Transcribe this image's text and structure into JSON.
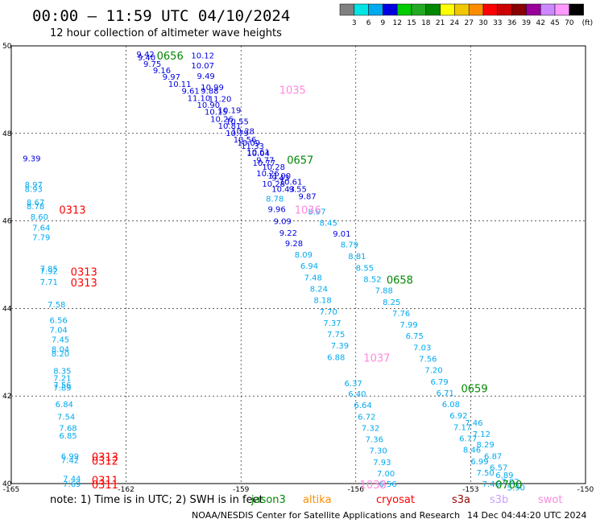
{
  "title": "00:00 – 11:59 UTC 04/10/2024",
  "subtitle": "12 hour collection of altimeter wave heights",
  "note_text": "note:  1) Time is in UTC;  2) SWH is in feet",
  "credit": "NOAA/NESDIS Center for Satellite Applications and Research",
  "generated": "14 Dec 04:44:20 UTC 2024",
  "colorbar": {
    "unit": "(ft)",
    "ticks": [
      "3",
      "6",
      "9",
      "12",
      "15",
      "18",
      "21",
      "24",
      "27",
      "30",
      "33",
      "36",
      "39",
      "42",
      "45",
      "70"
    ],
    "colors": [
      "#808080",
      "#00e6e6",
      "#00aaf0",
      "#0000e0",
      "#00cc00",
      "#22aa22",
      "#008800",
      "#ffff00",
      "#f0c800",
      "#ff8c00",
      "#ff0000",
      "#cc0000",
      "#880000",
      "#990099",
      "#cc88ff",
      "#ff99ff",
      "#000000"
    ]
  },
  "satellites": [
    {
      "name": "jason3",
      "color": "#008800"
    },
    {
      "name": "altika",
      "color": "#ff8c00"
    },
    {
      "name": "cryosat",
      "color": "#ff0000"
    },
    {
      "name": "s3a",
      "color": "#990000"
    },
    {
      "name": "s3b",
      "color": "#c8a0ff"
    },
    {
      "name": "swot",
      "color": "#ff88dd"
    }
  ],
  "chart_data": {
    "type": "scatter",
    "xlim": [
      -165,
      -150
    ],
    "ylim": [
      40,
      50
    ],
    "xticks": [
      "-165",
      "-162",
      "-159",
      "-156",
      "-153",
      "-150"
    ],
    "yticks": [
      "50",
      "48",
      "46",
      "44",
      "42",
      "40"
    ],
    "grid": true,
    "points": [
      {
        "lon": -161.73,
        "lat": 49.8,
        "v": "9.42",
        "c": "#0000e0"
      },
      {
        "lon": -161.7,
        "lat": 49.72,
        "v": "9.40",
        "c": "#0000e0"
      },
      {
        "lon": -161.55,
        "lat": 49.58,
        "v": "9.75",
        "c": "#0000e0"
      },
      {
        "lon": -161.3,
        "lat": 49.43,
        "v": "9.16",
        "c": "#0000e0"
      },
      {
        "lon": -161.05,
        "lat": 49.28,
        "v": "9.97",
        "c": "#0000e0"
      },
      {
        "lon": -160.9,
        "lat": 49.12,
        "v": "10.11",
        "c": "#0000e0"
      },
      {
        "lon": -160.55,
        "lat": 48.96,
        "v": "9.61",
        "c": "#0000e0"
      },
      {
        "lon": -160.4,
        "lat": 48.8,
        "v": "11.10",
        "c": "#0000e0"
      },
      {
        "lon": -160.15,
        "lat": 48.64,
        "v": "10.90",
        "c": "#0000e0"
      },
      {
        "lon": -159.95,
        "lat": 48.48,
        "v": "10.15",
        "c": "#0000e0"
      },
      {
        "lon": -159.8,
        "lat": 48.32,
        "v": "10.26",
        "c": "#0000e0"
      },
      {
        "lon": -159.6,
        "lat": 48.16,
        "v": "10.81",
        "c": "#0000e0"
      },
      {
        "lon": -159.4,
        "lat": 48.0,
        "v": "10.79",
        "c": "#0000e0"
      },
      {
        "lon": -159.2,
        "lat": 47.85,
        "v": "10.56",
        "c": "#0000e0"
      },
      {
        "lon": -159.0,
        "lat": 47.7,
        "v": "11.33",
        "c": "#0000e0"
      },
      {
        "lon": -158.85,
        "lat": 47.54,
        "v": "10.04",
        "c": "#0000e0"
      },
      {
        "lon": -158.6,
        "lat": 47.38,
        "v": "9.77",
        "c": "#0000e0"
      },
      {
        "lon": -158.45,
        "lat": 47.22,
        "v": "10.28",
        "c": "#0000e0"
      },
      {
        "lon": -158.3,
        "lat": 47.02,
        "v": "11.00",
        "c": "#0000e0"
      },
      {
        "lon": -158.0,
        "lat": 46.88,
        "v": "10.61",
        "c": "#0000e0"
      },
      {
        "lon": -158.2,
        "lat": 46.72,
        "v": "10.43",
        "c": "#0000e0"
      },
      {
        "lon": -157.75,
        "lat": 46.72,
        "v": "9.55",
        "c": "#0000e0"
      },
      {
        "lon": -157.5,
        "lat": 46.55,
        "v": "9.87",
        "c": "#0000e0"
      },
      {
        "lon": -158.35,
        "lat": 46.5,
        "v": "8.78",
        "c": "#00aaf0"
      },
      {
        "lon": -158.3,
        "lat": 46.26,
        "v": "9.96",
        "c": "#0000e0"
      },
      {
        "lon": -158.15,
        "lat": 45.98,
        "v": "9.09",
        "c": "#0000e0"
      },
      {
        "lon": -158.0,
        "lat": 45.72,
        "v": "9.22",
        "c": "#0000e0"
      },
      {
        "lon": -157.85,
        "lat": 45.48,
        "v": "9.28",
        "c": "#0000e0"
      },
      {
        "lon": -157.6,
        "lat": 45.22,
        "v": "8.09",
        "c": "#00aaf0"
      },
      {
        "lon": -157.45,
        "lat": 44.96,
        "v": "6.94",
        "c": "#00aaf0"
      },
      {
        "lon": -157.35,
        "lat": 44.7,
        "v": "7.48",
        "c": "#00aaf0"
      },
      {
        "lon": -157.2,
        "lat": 44.44,
        "v": "8.24",
        "c": "#00aaf0"
      },
      {
        "lon": -157.1,
        "lat": 44.18,
        "v": "8.18",
        "c": "#00aaf0"
      },
      {
        "lon": -156.95,
        "lat": 43.92,
        "v": "7.70",
        "c": "#00aaf0"
      },
      {
        "lon": -156.85,
        "lat": 43.66,
        "v": "7.37",
        "c": "#00aaf0"
      },
      {
        "lon": -156.75,
        "lat": 43.4,
        "v": "7.75",
        "c": "#00aaf0"
      },
      {
        "lon": -156.65,
        "lat": 43.14,
        "v": "7.39",
        "c": "#00aaf0"
      },
      {
        "lon": -156.75,
        "lat": 42.88,
        "v": "6.88",
        "c": "#00aaf0"
      },
      {
        "lon": -156.3,
        "lat": 42.28,
        "v": "6.37",
        "c": "#00aaf0"
      },
      {
        "lon": -156.2,
        "lat": 42.04,
        "v": "6.40",
        "c": "#00aaf0"
      },
      {
        "lon": -156.05,
        "lat": 41.78,
        "v": "6.64",
        "c": "#00aaf0"
      },
      {
        "lon": -155.95,
        "lat": 41.52,
        "v": "6.72",
        "c": "#00aaf0"
      },
      {
        "lon": -155.85,
        "lat": 41.26,
        "v": "7.32",
        "c": "#00aaf0"
      },
      {
        "lon": -155.75,
        "lat": 41.0,
        "v": "7.36",
        "c": "#00aaf0"
      },
      {
        "lon": -155.65,
        "lat": 40.74,
        "v": "7.30",
        "c": "#00aaf0"
      },
      {
        "lon": -155.55,
        "lat": 40.48,
        "v": "7.93",
        "c": "#00aaf0"
      },
      {
        "lon": -155.45,
        "lat": 40.22,
        "v": "7.00",
        "c": "#00aaf0"
      },
      {
        "lon": -155.4,
        "lat": 39.98,
        "v": "6.56",
        "c": "#00aaf0"
      },
      {
        "lon": -157.25,
        "lat": 46.2,
        "v": "8.97",
        "c": "#00aaf0"
      },
      {
        "lon": -156.95,
        "lat": 45.95,
        "v": "8.45",
        "c": "#00aaf0"
      },
      {
        "lon": -156.6,
        "lat": 45.7,
        "v": "9.01",
        "c": "#0000e0"
      },
      {
        "lon": -156.4,
        "lat": 45.45,
        "v": "8.79",
        "c": "#00aaf0"
      },
      {
        "lon": -156.2,
        "lat": 45.18,
        "v": "8.81",
        "c": "#00aaf0"
      },
      {
        "lon": -156.0,
        "lat": 44.92,
        "v": "8.55",
        "c": "#00aaf0"
      },
      {
        "lon": -155.8,
        "lat": 44.66,
        "v": "8.52",
        "c": "#00aaf0"
      },
      {
        "lon": -155.5,
        "lat": 44.4,
        "v": "7.88",
        "c": "#00aaf0"
      },
      {
        "lon": -155.3,
        "lat": 44.14,
        "v": "8.25",
        "c": "#00aaf0"
      },
      {
        "lon": -155.05,
        "lat": 43.88,
        "v": "7.76",
        "c": "#00aaf0"
      },
      {
        "lon": -154.85,
        "lat": 43.62,
        "v": "7.99",
        "c": "#00aaf0"
      },
      {
        "lon": -154.7,
        "lat": 43.36,
        "v": "6.75",
        "c": "#00aaf0"
      },
      {
        "lon": -154.5,
        "lat": 43.1,
        "v": "7.03",
        "c": "#00aaf0"
      },
      {
        "lon": -154.35,
        "lat": 42.84,
        "v": "7.56",
        "c": "#00aaf0"
      },
      {
        "lon": -154.2,
        "lat": 42.58,
        "v": "7.20",
        "c": "#00aaf0"
      },
      {
        "lon": -154.05,
        "lat": 42.32,
        "v": "6.79",
        "c": "#00aaf0"
      },
      {
        "lon": -153.9,
        "lat": 42.06,
        "v": "6.71",
        "c": "#00aaf0"
      },
      {
        "lon": -153.75,
        "lat": 41.8,
        "v": "6.08",
        "c": "#00aaf0"
      },
      {
        "lon": -153.55,
        "lat": 41.54,
        "v": "6.92",
        "c": "#00aaf0"
      },
      {
        "lon": -153.45,
        "lat": 41.28,
        "v": "7.17",
        "c": "#00aaf0"
      },
      {
        "lon": -153.3,
        "lat": 41.02,
        "v": "6.77",
        "c": "#00aaf0"
      },
      {
        "lon": -153.2,
        "lat": 40.76,
        "v": "8.46",
        "c": "#00aaf0"
      },
      {
        "lon": -153.0,
        "lat": 40.5,
        "v": "6.99",
        "c": "#00aaf0"
      },
      {
        "lon": -152.85,
        "lat": 40.24,
        "v": "7.50",
        "c": "#00aaf0"
      },
      {
        "lon": -152.7,
        "lat": 39.98,
        "v": "7.46",
        "c": "#00aaf0"
      },
      {
        "lon": -164.7,
        "lat": 47.42,
        "v": "9.39",
        "c": "#0000e0"
      },
      {
        "lon": -164.65,
        "lat": 46.82,
        "v": "8.97",
        "c": "#00aaf0"
      },
      {
        "lon": -164.65,
        "lat": 46.72,
        "v": "8.93",
        "c": "#00aaf0"
      },
      {
        "lon": -164.6,
        "lat": 46.42,
        "v": "8.67",
        "c": "#00aaf0"
      },
      {
        "lon": -164.6,
        "lat": 46.32,
        "v": "8.78",
        "c": "#00aaf0"
      },
      {
        "lon": -164.5,
        "lat": 46.08,
        "v": "8.60",
        "c": "#00aaf0"
      },
      {
        "lon": -164.45,
        "lat": 45.84,
        "v": "7.64",
        "c": "#00aaf0"
      },
      {
        "lon": -164.45,
        "lat": 45.62,
        "v": "7.79",
        "c": "#00aaf0"
      },
      {
        "lon": -164.25,
        "lat": 44.9,
        "v": "7.85",
        "c": "#00aaf0"
      },
      {
        "lon": -164.25,
        "lat": 44.84,
        "v": "7.92",
        "c": "#00aaf0"
      },
      {
        "lon": -164.25,
        "lat": 44.6,
        "v": "7.71",
        "c": "#00aaf0"
      },
      {
        "lon": -164.05,
        "lat": 44.08,
        "v": "7.58",
        "c": "#00aaf0"
      },
      {
        "lon": -164.0,
        "lat": 43.72,
        "v": "6.56",
        "c": "#00aaf0"
      },
      {
        "lon": -164.0,
        "lat": 43.5,
        "v": "7.04",
        "c": "#00aaf0"
      },
      {
        "lon": -163.95,
        "lat": 43.28,
        "v": "7.45",
        "c": "#00aaf0"
      },
      {
        "lon": -163.95,
        "lat": 43.06,
        "v": "8.04",
        "c": "#00aaf0"
      },
      {
        "lon": -163.95,
        "lat": 42.96,
        "v": "8.20",
        "c": "#00aaf0"
      },
      {
        "lon": -163.9,
        "lat": 42.56,
        "v": "8.35",
        "c": "#00aaf0"
      },
      {
        "lon": -163.9,
        "lat": 42.4,
        "v": "7.21",
        "c": "#00aaf0"
      },
      {
        "lon": -163.9,
        "lat": 42.24,
        "v": "7.56",
        "c": "#00aaf0"
      },
      {
        "lon": -163.9,
        "lat": 42.18,
        "v": "7.89",
        "c": "#00aaf0"
      },
      {
        "lon": -163.85,
        "lat": 41.8,
        "v": "6.84",
        "c": "#00aaf0"
      },
      {
        "lon": -163.8,
        "lat": 41.52,
        "v": "7.54",
        "c": "#00aaf0"
      },
      {
        "lon": -163.75,
        "lat": 41.26,
        "v": "7.68",
        "c": "#00aaf0"
      },
      {
        "lon": -163.75,
        "lat": 41.08,
        "v": "6.85",
        "c": "#00aaf0"
      },
      {
        "lon": -163.7,
        "lat": 40.62,
        "v": "6.99",
        "c": "#00aaf0"
      },
      {
        "lon": -163.7,
        "lat": 40.52,
        "v": "7.42",
        "c": "#00aaf0"
      },
      {
        "lon": -163.65,
        "lat": 40.1,
        "v": "7.44",
        "c": "#00aaf0"
      },
      {
        "lon": -163.65,
        "lat": 39.98,
        "v": "7.69",
        "c": "#00aaf0"
      },
      {
        "lon": -160.3,
        "lat": 49.77,
        "v": "10.12",
        "c": "#0000e0"
      },
      {
        "lon": -160.3,
        "lat": 49.54,
        "v": "10.07",
        "c": "#0000e0"
      },
      {
        "lon": -160.15,
        "lat": 49.3,
        "v": "9.49",
        "c": "#0000e0"
      },
      {
        "lon": -160.05,
        "lat": 49.04,
        "v": "10.99",
        "c": "#0000e0"
      },
      {
        "lon": -160.05,
        "lat": 48.96,
        "v": "9.88",
        "c": "#0000e0"
      },
      {
        "lon": -159.85,
        "lat": 48.78,
        "v": "11.20",
        "c": "#0000e0"
      },
      {
        "lon": -159.6,
        "lat": 48.52,
        "v": "10.19",
        "c": "#0000e0"
      },
      {
        "lon": -159.4,
        "lat": 48.26,
        "v": "10.55",
        "c": "#0000e0"
      },
      {
        "lon": -159.25,
        "lat": 48.04,
        "v": "10.28",
        "c": "#0000e0"
      },
      {
        "lon": -159.1,
        "lat": 47.78,
        "v": "10.09",
        "c": "#0000e0"
      },
      {
        "lon": -158.85,
        "lat": 47.56,
        "v": "10.61",
        "c": "#0000e0"
      },
      {
        "lon": -158.7,
        "lat": 47.32,
        "v": "10.77",
        "c": "#0000e0"
      },
      {
        "lon": -158.6,
        "lat": 47.08,
        "v": "10.26",
        "c": "#0000e0"
      },
      {
        "lon": -158.45,
        "lat": 46.84,
        "v": "10.28",
        "c": "#0000e0"
      },
      {
        "lon": -158.2,
        "lat": 46.98,
        "v": "9.43",
        "c": "#0000e0"
      },
      {
        "lon": -152.5,
        "lat": 40.36,
        "v": "6.57",
        "c": "#00aaf0"
      },
      {
        "lon": -152.35,
        "lat": 40.18,
        "v": "6.89",
        "c": "#00aaf0"
      },
      {
        "lon": -152.2,
        "lat": 40.04,
        "v": "7.02",
        "c": "#00aaf0"
      },
      {
        "lon": -152.05,
        "lat": 39.9,
        "v": "5.90",
        "c": "#00aaf0"
      },
      {
        "lon": -152.65,
        "lat": 40.62,
        "v": "6.87",
        "c": "#00aaf0"
      },
      {
        "lon": -152.85,
        "lat": 40.88,
        "v": "8.29",
        "c": "#00aaf0"
      },
      {
        "lon": -152.95,
        "lat": 41.12,
        "v": "7.12",
        "c": "#00aaf0"
      },
      {
        "lon": -153.15,
        "lat": 41.38,
        "v": "7.46",
        "c": "#00aaf0"
      }
    ],
    "passes": [
      {
        "lon": -161.2,
        "lat": 49.78,
        "v": "0656",
        "sat": "jason3"
      },
      {
        "lon": -158.0,
        "lat": 49.0,
        "v": "1035",
        "sat": "swot"
      },
      {
        "lon": -157.8,
        "lat": 47.4,
        "v": "0657",
        "sat": "jason3"
      },
      {
        "lon": -157.6,
        "lat": 46.26,
        "v": "1036",
        "sat": "swot"
      },
      {
        "lon": -163.75,
        "lat": 46.26,
        "v": "0313",
        "sat": "cryosat"
      },
      {
        "lon": -155.2,
        "lat": 44.66,
        "v": "0658",
        "sat": "jason3"
      },
      {
        "lon": -163.45,
        "lat": 44.84,
        "v": "0313",
        "sat": "cryosat"
      },
      {
        "lon": -163.45,
        "lat": 44.6,
        "v": "0313",
        "sat": "cryosat"
      },
      {
        "lon": -155.8,
        "lat": 42.88,
        "v": "1037",
        "sat": "swot"
      },
      {
        "lon": -153.25,
        "lat": 42.18,
        "v": "0659",
        "sat": "jason3"
      },
      {
        "lon": -162.9,
        "lat": 40.62,
        "v": "0313",
        "sat": "cryosat"
      },
      {
        "lon": -162.9,
        "lat": 40.52,
        "v": "0312",
        "sat": "cryosat"
      },
      {
        "lon": -155.9,
        "lat": 39.98,
        "v": "1038",
        "sat": "swot"
      },
      {
        "lon": -152.35,
        "lat": 39.98,
        "v": "0700",
        "sat": "jason3"
      },
      {
        "lon": -162.9,
        "lat": 40.08,
        "v": "0311",
        "sat": "cryosat"
      },
      {
        "lon": -162.9,
        "lat": 39.98,
        "v": "0311",
        "sat": "cryosat"
      }
    ]
  }
}
